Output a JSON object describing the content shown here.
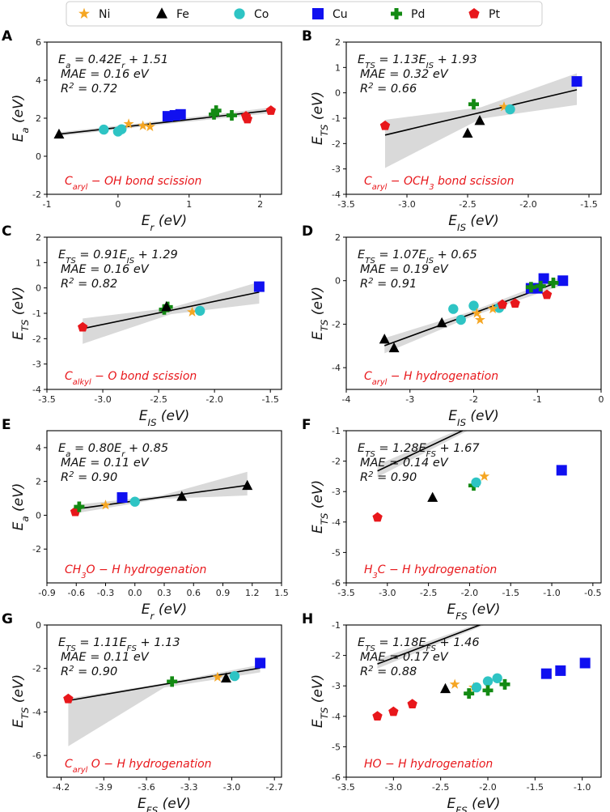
{
  "chart_data": {
    "type": "scatter",
    "legend": {
      "placement": "top-center",
      "entries": [
        {
          "label": "Ni",
          "marker": "star",
          "color": "#f5a623"
        },
        {
          "label": "Fe",
          "marker": "triangle",
          "color": "#000000"
        },
        {
          "label": "Co",
          "marker": "circle",
          "color": "#2ec4c4"
        },
        {
          "label": "Cu",
          "marker": "square",
          "color": "#1010f0"
        },
        {
          "label": "Pd",
          "marker": "plus",
          "color": "#138a13"
        },
        {
          "label": "Pt",
          "marker": "pentagon",
          "color": "#e8171b"
        }
      ]
    },
    "panels": [
      {
        "label": "A",
        "xlabel": "Er (eV)",
        "ylabel": "Ea (eV)",
        "xlim": [
          -1,
          2.3
        ],
        "ylim": [
          -2,
          6
        ],
        "xticks": [
          -1,
          0,
          1,
          2
        ],
        "yticks": [
          -2,
          0,
          2,
          4,
          6
        ],
        "fit": {
          "slope": 0.42,
          "intercept": 1.51,
          "x": [
            -0.83,
            2.15
          ],
          "band_lo": [
            -0.1,
            -0.1,
            -0.15
          ],
          "band_hi": [
            0.1,
            0.1,
            0.15
          ]
        },
        "equation": [
          "Ea = 0.42Er + 1.51",
          "MAE = 0.16 eV",
          "R² = 0.72"
        ],
        "reaction": "Caryl − OH bond scission",
        "points": [
          {
            "metal": "Fe",
            "x": -0.83,
            "y": 1.15
          },
          {
            "metal": "Co",
            "x": -0.2,
            "y": 1.4
          },
          {
            "metal": "Co",
            "x": 0.0,
            "y": 1.3
          },
          {
            "metal": "Co",
            "x": 0.05,
            "y": 1.42
          },
          {
            "metal": "Ni",
            "x": 0.15,
            "y": 1.7
          },
          {
            "metal": "Ni",
            "x": 0.35,
            "y": 1.6
          },
          {
            "metal": "Ni",
            "x": 0.45,
            "y": 1.55
          },
          {
            "metal": "Cu",
            "x": 0.7,
            "y": 2.1
          },
          {
            "metal": "Cu",
            "x": 0.8,
            "y": 2.15
          },
          {
            "metal": "Cu",
            "x": 0.88,
            "y": 2.2
          },
          {
            "metal": "Pd",
            "x": 1.35,
            "y": 2.2
          },
          {
            "metal": "Pd",
            "x": 1.38,
            "y": 2.4
          },
          {
            "metal": "Pd",
            "x": 1.6,
            "y": 2.15
          },
          {
            "metal": "Pt",
            "x": 1.8,
            "y": 2.1
          },
          {
            "metal": "Pt",
            "x": 1.82,
            "y": 1.95
          },
          {
            "metal": "Pt",
            "x": 2.15,
            "y": 2.4
          }
        ]
      },
      {
        "label": "B",
        "xlabel": "EIS (eV)",
        "ylabel": "ETS (eV)",
        "xlim": [
          -3.5,
          -1.4
        ],
        "ylim": [
          -4,
          2
        ],
        "xticks": [
          -3.5,
          -3.0,
          -2.5,
          -2.0,
          -1.5
        ],
        "yticks": [
          -4,
          -3,
          -2,
          -1,
          0,
          1,
          2
        ],
        "fit": {
          "slope": 1.13,
          "intercept": 1.93,
          "x": [
            -3.18,
            -1.6
          ],
          "band_lo": [
            -1.3,
            -0.25,
            -0.6
          ],
          "band_hi": [
            0.6,
            0.2,
            0.65
          ]
        },
        "equation": [
          "ETS = 1.13EIS + 1.93",
          "MAE = 0.32 eV",
          "R² = 0.66"
        ],
        "reaction": "Caryl − OCH3 bond scission",
        "points": [
          {
            "metal": "Pt",
            "x": -3.18,
            "y": -1.3
          },
          {
            "metal": "Fe",
            "x": -2.5,
            "y": -1.6
          },
          {
            "metal": "Fe",
            "x": -2.4,
            "y": -1.1
          },
          {
            "metal": "Pd",
            "x": -2.45,
            "y": -0.45
          },
          {
            "metal": "Ni",
            "x": -2.2,
            "y": -0.55
          },
          {
            "metal": "Co",
            "x": -2.15,
            "y": -0.65
          },
          {
            "metal": "Cu",
            "x": -1.6,
            "y": 0.45
          }
        ]
      },
      {
        "label": "C",
        "xlabel": "EIS (eV)",
        "ylabel": "ETS (eV)",
        "xlim": [
          -3.5,
          -1.4
        ],
        "ylim": [
          -4,
          2
        ],
        "xticks": [
          -3.5,
          -3.0,
          -2.5,
          -2.0,
          -1.5
        ],
        "yticks": [
          -4,
          -3,
          -2,
          -1,
          0,
          1,
          2
        ],
        "fit": {
          "slope": 0.91,
          "intercept": 1.29,
          "x": [
            -3.18,
            -1.6
          ],
          "band_lo": [
            -0.6,
            -0.15,
            -0.45
          ],
          "band_hi": [
            0.4,
            0.1,
            0.4
          ]
        },
        "equation": [
          "ETS = 0.91EIS + 1.29",
          "MAE = 0.16 eV",
          "R² = 0.82"
        ],
        "reaction": "Calkyl − O bond scission",
        "points": [
          {
            "metal": "Pt",
            "x": -3.18,
            "y": -1.55
          },
          {
            "metal": "Pd",
            "x": -2.45,
            "y": -0.85
          },
          {
            "metal": "Pd",
            "x": -2.42,
            "y": -0.75
          },
          {
            "metal": "Fe",
            "x": -2.43,
            "y": -0.75
          },
          {
            "metal": "Ni",
            "x": -2.2,
            "y": -0.95
          },
          {
            "metal": "Co",
            "x": -2.13,
            "y": -0.9
          },
          {
            "metal": "Cu",
            "x": -1.6,
            "y": 0.05
          }
        ]
      },
      {
        "label": "D",
        "xlabel": "EIS (eV)",
        "ylabel": "ETS (eV)",
        "xlim": [
          -4,
          0
        ],
        "ylim": [
          -5,
          2
        ],
        "xticks": [
          -4,
          -3,
          -2,
          -1,
          0
        ],
        "yticks": [
          -4,
          -2,
          0,
          2
        ],
        "fit": {
          "slope": 1.07,
          "intercept": 0.65,
          "x": [
            -3.4,
            -0.68
          ],
          "band_lo": [
            -0.35,
            -0.12,
            -0.2
          ],
          "band_hi": [
            0.35,
            0.12,
            0.2
          ]
        },
        "equation": [
          "ETS = 1.07EIS + 0.65",
          "MAE = 0.19 eV",
          "R² = 0.91"
        ],
        "reaction": "Caryl − H hydrogenation",
        "points": [
          {
            "metal": "Fe",
            "x": -3.4,
            "y": -2.7
          },
          {
            "metal": "Fe",
            "x": -3.25,
            "y": -3.1
          },
          {
            "metal": "Fe",
            "x": -2.5,
            "y": -1.95
          },
          {
            "metal": "Co",
            "x": -2.32,
            "y": -1.3
          },
          {
            "metal": "Co",
            "x": -2.2,
            "y": -1.8
          },
          {
            "metal": "Co",
            "x": -2.0,
            "y": -1.15
          },
          {
            "metal": "Co",
            "x": -1.6,
            "y": -1.25
          },
          {
            "metal": "Ni",
            "x": -1.95,
            "y": -1.5
          },
          {
            "metal": "Ni",
            "x": -1.9,
            "y": -1.8
          },
          {
            "metal": "Ni",
            "x": -1.7,
            "y": -1.3
          },
          {
            "metal": "Pt",
            "x": -1.55,
            "y": -1.1
          },
          {
            "metal": "Pt",
            "x": -1.35,
            "y": -1.05
          },
          {
            "metal": "Pt",
            "x": -0.85,
            "y": -0.65
          },
          {
            "metal": "Cu",
            "x": -1.1,
            "y": -0.35
          },
          {
            "metal": "Cu",
            "x": -1.0,
            "y": -0.35
          },
          {
            "metal": "Cu",
            "x": -0.9,
            "y": 0.1
          },
          {
            "metal": "Cu",
            "x": -0.6,
            "y": 0.0
          },
          {
            "metal": "Pd",
            "x": -1.1,
            "y": -0.3
          },
          {
            "metal": "Pd",
            "x": -0.95,
            "y": -0.25
          },
          {
            "metal": "Pd",
            "x": -0.75,
            "y": -0.1
          }
        ]
      },
      {
        "label": "E",
        "xlabel": "Er (eV)",
        "ylabel": "Ea (eV)",
        "xlim": [
          -0.9,
          1.5
        ],
        "ylim": [
          -4,
          5
        ],
        "xticks": [
          -0.9,
          -0.6,
          -0.3,
          0.0,
          0.3,
          0.6,
          0.9,
          1.2,
          1.5
        ],
        "yticks": [
          -2,
          0,
          2,
          4
        ],
        "fit": {
          "slope": 0.8,
          "intercept": 0.85,
          "x": [
            -0.62,
            1.15
          ],
          "band_lo": [
            -0.25,
            -0.1,
            -0.6
          ],
          "band_hi": [
            0.25,
            0.1,
            0.8
          ]
        },
        "equation": [
          "Ea = 0.80Er + 0.85",
          "MAE = 0.11 eV",
          "R² = 0.90"
        ],
        "reaction": "CH3O − H hydrogenation",
        "points": [
          {
            "metal": "Pt",
            "x": -0.61,
            "y": 0.2
          },
          {
            "metal": "Pd",
            "x": -0.57,
            "y": 0.5
          },
          {
            "metal": "Ni",
            "x": -0.3,
            "y": 0.6
          },
          {
            "metal": "Cu",
            "x": -0.13,
            "y": 1.05
          },
          {
            "metal": "Co",
            "x": 0.0,
            "y": 0.8
          },
          {
            "metal": "Fe",
            "x": 0.48,
            "y": 1.1
          },
          {
            "metal": "Fe",
            "x": 1.15,
            "y": 1.75
          }
        ]
      },
      {
        "label": "F",
        "xlabel": "EFS (eV)",
        "ylabel": "ETS (eV)",
        "xlim": [
          -3.5,
          -0.4
        ],
        "ylim": [
          -6,
          -1
        ],
        "xticks": [
          -3.5,
          -3.0,
          -2.5,
          -2.0,
          -1.5,
          -1.0,
          -0.5
        ],
        "yticks": [
          -6,
          -5,
          -4,
          -3,
          -2,
          -1
        ],
        "fit": {
          "slope": 1.28,
          "intercept": 1.67,
          "x": [
            -3.12,
            -0.88
          ],
          "band_lo": [
            -0.2,
            -0.08,
            -0.3
          ],
          "band_hi": [
            0.2,
            0.08,
            0.5
          ]
        },
        "equation": [
          "ETS = 1.28EFS + 1.67",
          "MAE = 0.14 eV",
          "R² = 0.90"
        ],
        "reaction": "H3C − H hydrogenation",
        "points": [
          {
            "metal": "Pt",
            "x": -3.12,
            "y": -3.85
          },
          {
            "metal": "Fe",
            "x": -2.45,
            "y": -3.2
          },
          {
            "metal": "Pd",
            "x": -1.95,
            "y": -2.8
          },
          {
            "metal": "Co",
            "x": -1.92,
            "y": -2.7
          },
          {
            "metal": "Ni",
            "x": -1.82,
            "y": -2.5
          },
          {
            "metal": "Cu",
            "x": -0.88,
            "y": -2.3
          }
        ]
      },
      {
        "label": "G",
        "xlabel": "EFS (eV)",
        "ylabel": "ETS (eV)",
        "xlim": [
          -4.3,
          -2.65
        ],
        "ylim": [
          -7,
          0
        ],
        "xticks": [
          -4.2,
          -3.9,
          -3.6,
          -3.3,
          -3.0,
          -2.7
        ],
        "yticks": [
          -6,
          -4,
          -2,
          0
        ],
        "fit": {
          "slope": 1.11,
          "intercept": 1.13,
          "x": [
            -4.15,
            -2.8
          ],
          "band_lo": [
            -2.1,
            -0.15,
            -0.2
          ],
          "band_hi": [
            0.1,
            0.05,
            0.15
          ]
        },
        "equation": [
          "ETS = 1.11EFS + 1.13",
          "MAE = 0.11 eV",
          "R² = 0.90"
        ],
        "reaction": "Caryl O − H hydrogenation",
        "points": [
          {
            "metal": "Pt",
            "x": -4.15,
            "y": -3.4
          },
          {
            "metal": "Pd",
            "x": -3.42,
            "y": -2.6
          },
          {
            "metal": "Ni",
            "x": -3.1,
            "y": -2.4
          },
          {
            "metal": "Fe",
            "x": -3.04,
            "y": -2.45
          },
          {
            "metal": "Co",
            "x": -2.98,
            "y": -2.35
          },
          {
            "metal": "Cu",
            "x": -2.8,
            "y": -1.75
          }
        ]
      },
      {
        "label": "H",
        "xlabel": "EFS (eV)",
        "ylabel": "ETS (eV)",
        "xlim": [
          -3.5,
          -0.8
        ],
        "ylim": [
          -6,
          -1
        ],
        "xticks": [
          -3.5,
          -3.0,
          -2.5,
          -2.0,
          -1.5,
          -1.0
        ],
        "yticks": [
          -6,
          -5,
          -4,
          -3,
          -2,
          -1
        ],
        "fit": {
          "slope": 1.18,
          "intercept": 1.46,
          "x": [
            -3.17,
            -0.97
          ],
          "band_lo": [
            -0.15,
            -0.06,
            -0.12
          ],
          "band_hi": [
            0.15,
            0.06,
            0.12
          ]
        },
        "equation": [
          "ETS = 1.18EFS + 1.46",
          "MAE = 0.17 eV",
          "R² = 0.88"
        ],
        "reaction": "HO − H hydrogenation",
        "points": [
          {
            "metal": "Pt",
            "x": -3.17,
            "y": -4.0
          },
          {
            "metal": "Pt",
            "x": -3.0,
            "y": -3.85
          },
          {
            "metal": "Pt",
            "x": -2.8,
            "y": -3.6
          },
          {
            "metal": "Fe",
            "x": -2.45,
            "y": -3.1
          },
          {
            "metal": "Ni",
            "x": -2.35,
            "y": -2.95
          },
          {
            "metal": "Ni",
            "x": -2.15,
            "y": -3.05
          },
          {
            "metal": "Co",
            "x": -2.12,
            "y": -3.05
          },
          {
            "metal": "Co",
            "x": -2.0,
            "y": -2.85
          },
          {
            "metal": "Co",
            "x": -1.9,
            "y": -2.75
          },
          {
            "metal": "Pd",
            "x": -2.2,
            "y": -3.25
          },
          {
            "metal": "Pd",
            "x": -2.0,
            "y": -3.15
          },
          {
            "metal": "Pd",
            "x": -1.82,
            "y": -2.95
          },
          {
            "metal": "Cu",
            "x": -1.38,
            "y": -2.6
          },
          {
            "metal": "Cu",
            "x": -1.23,
            "y": -2.5
          },
          {
            "metal": "Cu",
            "x": -0.97,
            "y": -2.25
          }
        ]
      }
    ]
  }
}
